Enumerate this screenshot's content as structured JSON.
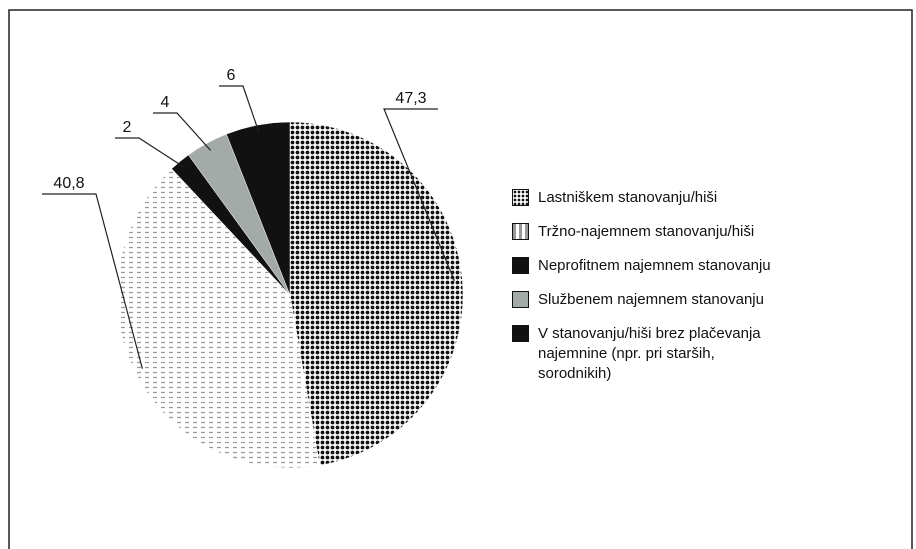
{
  "chart_data": {
    "type": "pie",
    "categories": [
      "Lastniškem stanovanju/hiši",
      "Tržno-najemnem stanovanju/hiši",
      "Neprofitnem najemnem stanovanju",
      "Službenem najemnem stanovanju",
      "V stanovanju/hiši brez plačevanja najemnine (npr. pri starših, sorodnikih)"
    ],
    "values": [
      47.3,
      40.8,
      2,
      4,
      6
    ],
    "value_labels": [
      "47,3",
      "40,8",
      "2",
      "4",
      "6"
    ],
    "colors": [
      "#111111",
      "#9a9a9a",
      "#111111",
      "#a3aaa8",
      "#111111"
    ],
    "legend": "right"
  }
}
